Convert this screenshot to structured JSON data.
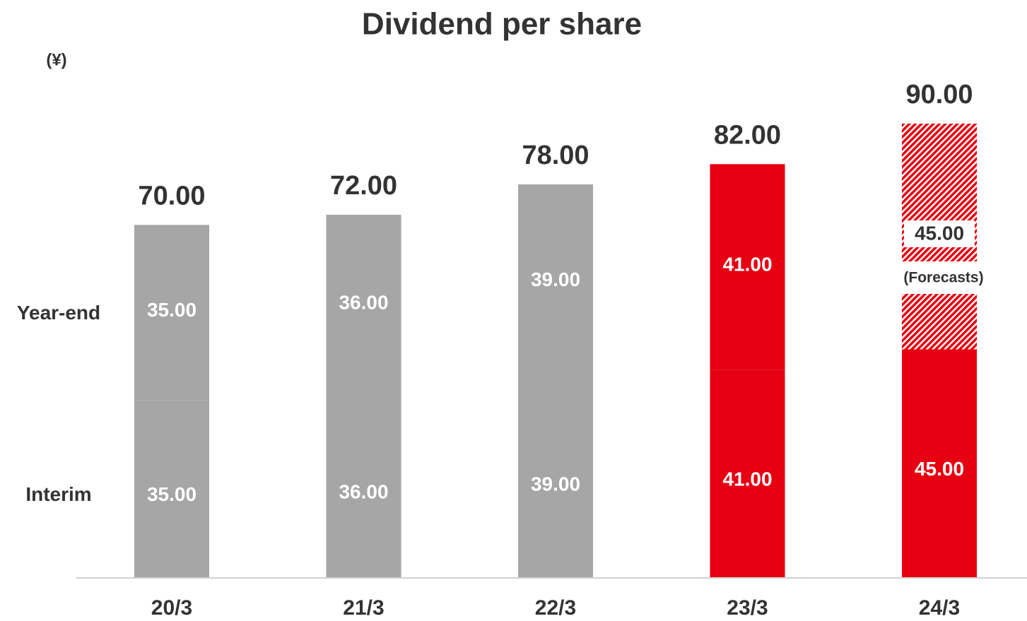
{
  "chart_data": {
    "type": "stacked_bar",
    "title": "Dividend per share",
    "unit_label": "(¥)",
    "categories": [
      "20/3",
      "21/3",
      "22/3",
      "23/3",
      "24/3"
    ],
    "series": [
      {
        "name": "Interim",
        "values": [
          35,
          36,
          39,
          41,
          45
        ],
        "value_labels": [
          "35.00",
          "36.00",
          "39.00",
          "41.00",
          "45.00"
        ],
        "colors": [
          "#a6a6a6",
          "#a6a6a6",
          "#a6a6a6",
          "#e60012",
          "#e60012"
        ],
        "hatched": [
          false,
          false,
          false,
          false,
          false
        ]
      },
      {
        "name": "Year-end",
        "values": [
          35,
          36,
          39,
          41,
          45
        ],
        "value_labels": [
          "35.00",
          "36.00",
          "39.00",
          "41.00",
          "45.00"
        ],
        "colors": [
          "#a6a6a6",
          "#a6a6a6",
          "#a6a6a6",
          "#e60012",
          "#e60012"
        ],
        "hatched": [
          false,
          false,
          false,
          false,
          true
        ]
      }
    ],
    "totals": [
      70,
      72,
      78,
      82,
      90
    ],
    "total_labels": [
      "70.00",
      "72.00",
      "78.00",
      "82.00",
      "90.00"
    ],
    "annotation": "(Forecasts)"
  }
}
